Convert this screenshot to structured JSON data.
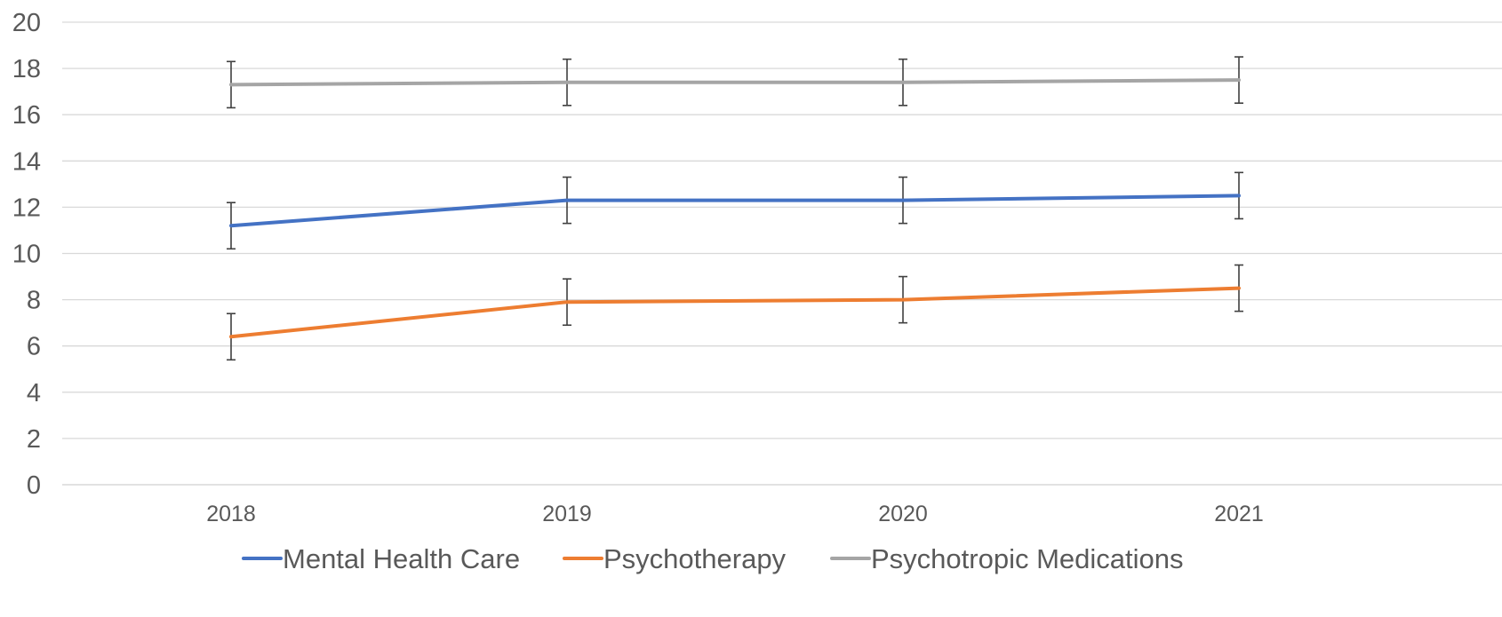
{
  "chart_data": {
    "type": "line",
    "title": "",
    "xlabel": "",
    "ylabel": "",
    "categories": [
      "2018",
      "2019",
      "2020",
      "2021"
    ],
    "ylim": [
      0,
      20
    ],
    "y_ticks": [
      0,
      2,
      4,
      6,
      8,
      10,
      12,
      14,
      16,
      18,
      20
    ],
    "grid": true,
    "legend_position": "bottom",
    "error_bars": true,
    "series": [
      {
        "name": "Mental Health Care",
        "color": "#4472c4",
        "values": [
          11.2,
          12.3,
          12.3,
          12.5
        ],
        "error_low": [
          10.2,
          11.3,
          11.3,
          11.5
        ],
        "error_high": [
          12.2,
          13.3,
          13.3,
          13.5
        ]
      },
      {
        "name": "Psychotherapy",
        "color": "#ed7d31",
        "values": [
          6.4,
          7.9,
          8.0,
          8.5
        ],
        "error_low": [
          5.4,
          6.9,
          7.0,
          7.5
        ],
        "error_high": [
          7.4,
          8.9,
          9.0,
          9.5
        ]
      },
      {
        "name": "Psychotropic Medications",
        "color": "#a5a5a5",
        "values": [
          17.3,
          17.4,
          17.4,
          17.5
        ],
        "error_low": [
          16.3,
          16.4,
          16.4,
          16.5
        ],
        "error_high": [
          18.3,
          18.4,
          18.4,
          18.5
        ]
      }
    ]
  }
}
